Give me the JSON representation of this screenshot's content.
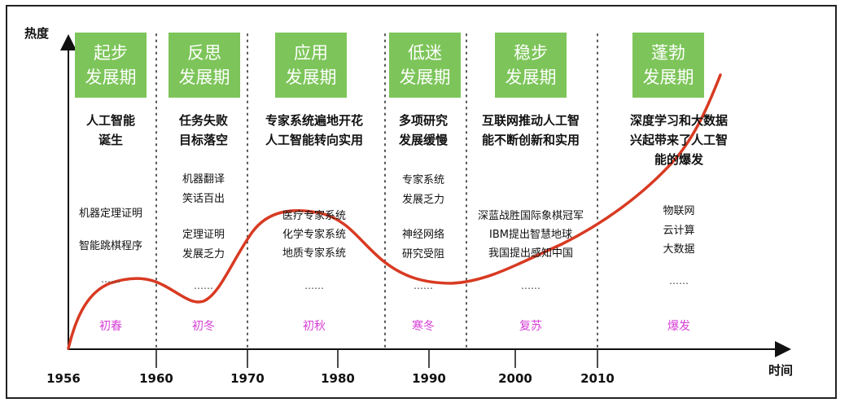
{
  "axis": {
    "y_label": "热度",
    "x_label": "时间",
    "x_ticks": [
      "1956",
      "1960",
      "1970",
      "1980",
      "1990",
      "2000",
      "2010"
    ]
  },
  "colors": {
    "phase_box": "#7dc55a",
    "curve": "#d83a22",
    "season": "#d63fd6"
  },
  "columns": [
    {
      "phase": [
        "起步",
        "发展期"
      ],
      "headline": [
        "人工智能",
        "诞生"
      ],
      "items": [
        "机器定理证明",
        "智能跳棋程序"
      ],
      "dots": "……",
      "season": "初春"
    },
    {
      "phase": [
        "反思",
        "发展期"
      ],
      "headline": [
        "任务失败",
        "目标落空"
      ],
      "items": [
        "机器翻译",
        "笑话百出",
        "定理证明",
        "发展乏力"
      ],
      "dots": "……",
      "season": "初冬"
    },
    {
      "phase": [
        "应用",
        "发展期"
      ],
      "headline": [
        "专家系统遍地开花",
        "人工智能转向实用"
      ],
      "items": [
        "医疗专家系统",
        "化学专家系统",
        "地质专家系统"
      ],
      "dots": "……",
      "season": "初秋"
    },
    {
      "phase": [
        "低迷",
        "发展期"
      ],
      "headline": [
        "多项研究",
        "发展缓慢"
      ],
      "items": [
        "专家系统",
        "发展乏力",
        "神经网络",
        "研究受阻"
      ],
      "dots": "……",
      "season": "寒冬"
    },
    {
      "phase": [
        "稳步",
        "发展期"
      ],
      "headline": [
        "互联网推动人工智",
        "能不断创新和实用"
      ],
      "items": [
        "深蓝战胜国际象棋冠军",
        "IBM提出智慧地球",
        "我国提出感知中国"
      ],
      "dots": "……",
      "season": "复苏"
    },
    {
      "phase": [
        "蓬勃",
        "发展期"
      ],
      "headline": [
        "深度学习和大数据",
        "兴起带来了人工智",
        "能的爆发"
      ],
      "items": [
        "物联网",
        "云计算",
        "大数据"
      ],
      "dots": "……",
      "season": "爆发"
    }
  ]
}
